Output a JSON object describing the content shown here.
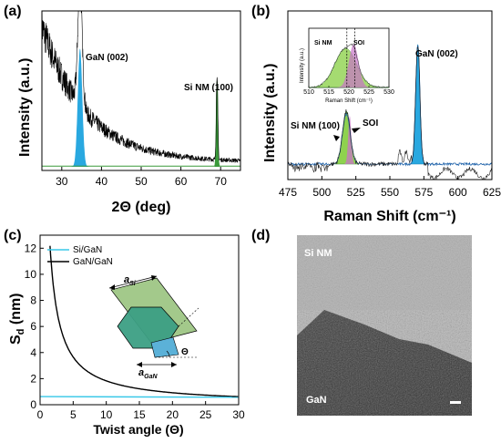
{
  "panels": {
    "a": {
      "label": "(a)",
      "ylabel": "Intensity (a.u.)",
      "xlabel": "2Θ (deg)",
      "peak_gan": "GaN (002)",
      "peak_si": "Si NM (100)"
    },
    "b": {
      "label": "(b)",
      "ylabel": "Intensity (a.u.)",
      "xlabel": "Raman Shift (cm⁻¹)",
      "peak_gan": "GaN (002)",
      "peak_si": "Si NM (100)",
      "peak_soi": "SOI",
      "inset": {
        "ylabel": "Intensity (a.u.)",
        "xlabel": "Raman Shift (cm⁻¹)",
        "label_si": "Si NM",
        "label_soi": "SOI"
      }
    },
    "c": {
      "label": "(c)",
      "ylabel": "S",
      "ylabel_sub": "d",
      "ylabel_unit": " (nm)",
      "xlabel": "Twist angle (Θ)",
      "legend": [
        "Si/GaN",
        "GaN/GaN"
      ],
      "diagram": {
        "a_si": "a",
        "a_si_sub": "Si",
        "a_gan": "a",
        "a_gan_sub": "GaN",
        "theta": "Θ"
      }
    },
    "d": {
      "label": "(d)",
      "top_label": "Si NM",
      "bottom_label": "GaN"
    }
  },
  "colors": {
    "gan_fill": "#29a8e0",
    "si_fill": "#8ed24e",
    "soi_fill": "#c873c8",
    "xrd_line": "#000000",
    "green_line": "#3a9a3a",
    "si_gan_line": "#38c8e8",
    "gan_gan_line": "#000000"
  },
  "chart_data": [
    {
      "panel": "a",
      "type": "line",
      "xlabel": "2Θ (deg)",
      "ylabel": "Intensity (a.u.)",
      "xlim": [
        25,
        75
      ],
      "xticks": [
        30,
        40,
        50,
        60,
        70
      ],
      "series": [
        {
          "name": "GaN (002)",
          "peak_x": 34.6,
          "width": 0.8,
          "height": 0.74,
          "fill": "#29a8e0"
        },
        {
          "name": "Si NM (100)",
          "peak_x": 69.1,
          "width": 0.25,
          "height": 0.53,
          "fill": "#3a9a3a"
        }
      ],
      "background": "decaying noisy baseline from 25 to 75 deg"
    },
    {
      "panel": "b",
      "type": "line",
      "xlabel": "Raman Shift (cm⁻¹)",
      "ylabel": "Intensity (a.u.)",
      "xlim": [
        475,
        625
      ],
      "xticks": [
        475,
        500,
        525,
        550,
        575,
        600,
        625
      ],
      "series": [
        {
          "name": "Si NM (100)",
          "peak_x": 518,
          "width": 4,
          "height": 0.34,
          "fill": "#8ed24e"
        },
        {
          "name": "SOI",
          "peak_x": 520.5,
          "width": 1.6,
          "height": 0.31,
          "fill": "#c873c8"
        },
        {
          "name": "GaN (002)",
          "peak_x": 570.5,
          "width": 2.2,
          "height": 0.77,
          "fill": "#29a8e0"
        }
      ],
      "inset": {
        "xlim": [
          510,
          530
        ],
        "xticks": [
          510,
          515,
          520,
          525,
          530
        ],
        "dashed_lines": [
          519.5,
          521.5
        ]
      }
    },
    {
      "panel": "c",
      "type": "line",
      "xlabel": "Twist angle (Θ)",
      "ylabel": "Sd (nm)",
      "xlim": [
        0,
        30
      ],
      "ylim": [
        0,
        13
      ],
      "xticks": [
        0,
        5,
        10,
        15,
        20,
        25,
        30
      ],
      "yticks": [
        0,
        2,
        4,
        6,
        8,
        10,
        12
      ],
      "series": [
        {
          "name": "Si/GaN",
          "model": "constant",
          "value": 0.62
        },
        {
          "name": "GaN/GaN",
          "model": "a/(2 sin(theta/2))",
          "a_nm": 0.3189
        }
      ]
    }
  ]
}
